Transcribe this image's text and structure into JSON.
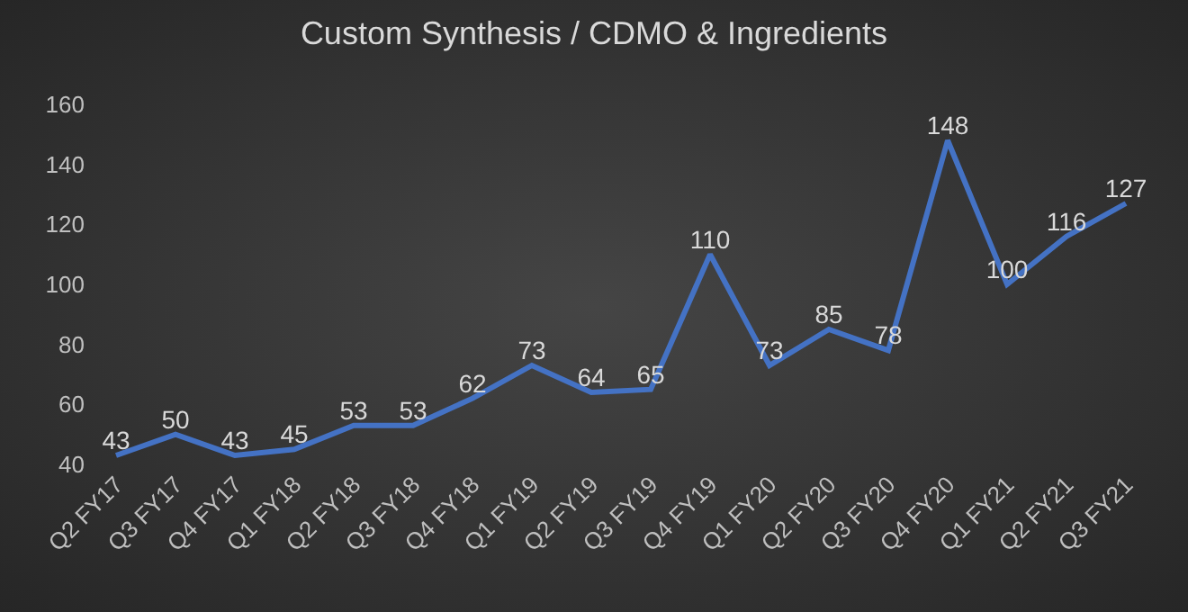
{
  "chart_data": {
    "type": "line",
    "title": "Custom Synthesis / CDMO & Ingredients",
    "categories": [
      "Q2 FY17",
      "Q3 FY17",
      "Q4 FY17",
      "Q1 FY18",
      "Q2 FY18",
      "Q3 FY18",
      "Q4 FY18",
      "Q1 FY19",
      "Q2 FY19",
      "Q3 FY19",
      "Q4 FY19",
      "Q1 FY20",
      "Q2 FY20",
      "Q3 FY20",
      "Q4 FY20",
      "Q1 FY21",
      "Q2 FY21",
      "Q3 FY21"
    ],
    "values": [
      43,
      50,
      43,
      45,
      53,
      53,
      62,
      73,
      64,
      65,
      110,
      73,
      85,
      78,
      148,
      100,
      116,
      127
    ],
    "color": "#4472c4",
    "ylim": [
      40,
      160
    ],
    "yticks": [
      40,
      60,
      80,
      100,
      120,
      140,
      160
    ],
    "grid": false,
    "data_labels": true
  }
}
